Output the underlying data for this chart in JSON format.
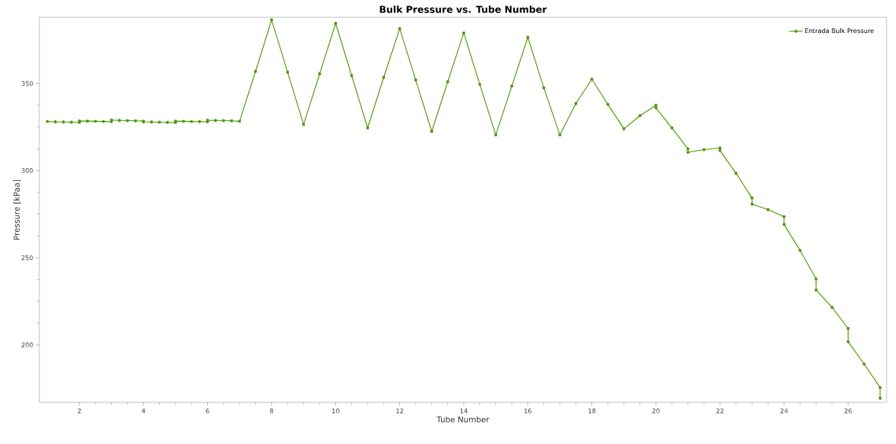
{
  "chart_data": {
    "type": "line",
    "title": "Bulk Pressure vs. Tube Number",
    "xlabel": "Tube Number",
    "ylabel": "Pressure [kPaa]",
    "series": [
      {
        "name": "Entrada Bulk Pressure",
        "color": "#4e9a06",
        "x": [
          1,
          1.25,
          1.5,
          1.75,
          2,
          2,
          2.25,
          2.5,
          2.75,
          3,
          3,
          3.25,
          3.5,
          3.75,
          4,
          4,
          4.25,
          4.5,
          4.75,
          5,
          5,
          5.25,
          5.5,
          5.75,
          6,
          6,
          6.25,
          6.5,
          6.75,
          7,
          7.5,
          8,
          8.5,
          9,
          9.5,
          10,
          10.5,
          11,
          11.5,
          12,
          12.5,
          13,
          13.5,
          14,
          14.5,
          15,
          15.5,
          16,
          16.5,
          17,
          17.5,
          18,
          18.5,
          19,
          19.5,
          20,
          20,
          20.5,
          21,
          21,
          21.5,
          22,
          22,
          22.5,
          23,
          23,
          23.5,
          24,
          24,
          24.5,
          25,
          25,
          25.5,
          26,
          26,
          26.5,
          27,
          27
        ],
        "values": [
          328.2,
          328,
          327.9,
          327.8,
          327.7,
          328.5,
          328.4,
          328.3,
          328.2,
          328.1,
          329,
          328.8,
          328.7,
          328.6,
          328.4,
          328,
          327.9,
          327.8,
          327.7,
          327.6,
          328.4,
          328.3,
          328.2,
          328.1,
          328,
          328.9,
          328.8,
          328.7,
          328.6,
          328.3,
          357,
          386.5,
          356.5,
          326.5,
          355.5,
          384.5,
          354.5,
          324.5,
          353.5,
          381.5,
          352,
          322.5,
          351,
          379,
          349.5,
          320.5,
          348.5,
          376.5,
          347.5,
          320.5,
          338.5,
          352.5,
          338,
          324,
          331.5,
          337.5,
          336,
          324.5,
          312.5,
          310.5,
          312,
          313,
          311.5,
          298.5,
          284.3,
          280.8,
          277.6,
          273.6,
          269.1,
          254.2,
          237.8,
          231.5,
          221.5,
          209.4,
          201.8,
          189,
          175.5,
          169.4
        ]
      }
    ],
    "xlim": [
      0.75,
      27.2
    ],
    "ylim": [
      167,
      388
    ],
    "xticks": [
      2,
      4,
      6,
      8,
      10,
      12,
      14,
      16,
      18,
      20,
      22,
      24,
      26
    ],
    "yticks": [
      200,
      250,
      300,
      350
    ],
    "grid": false,
    "legend": "top right",
    "marker": "circle",
    "line_style": "solid"
  }
}
